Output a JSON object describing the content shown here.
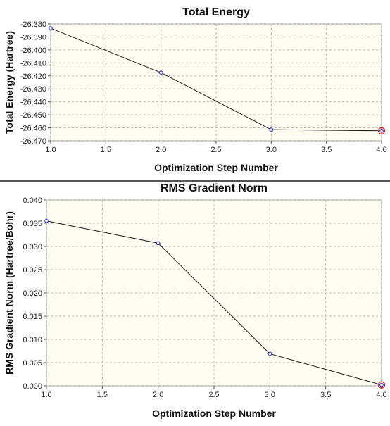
{
  "colors": {
    "plot_background": "#fdfdf2",
    "grid": "#b5b5b5",
    "line": "#1a1a1a",
    "point": "#3a3ae0",
    "last_point_marker": "#e02020"
  },
  "chart_data": [
    {
      "type": "line",
      "title": "Total Energy",
      "xlabel": "Optimization Step Number",
      "ylabel": "Total Energy (Hartree)",
      "x": [
        1.0,
        2.0,
        3.0,
        4.0
      ],
      "series": [
        {
          "values": [
            -26.3833,
            -26.4175,
            -26.4614,
            -26.4623
          ]
        }
      ],
      "xlim": [
        1.0,
        4.0
      ],
      "ylim": [
        -26.47,
        -26.38
      ],
      "xticks": [
        1.0,
        1.5,
        2.0,
        2.5,
        3.0,
        3.5,
        4.0
      ],
      "xtick_labels": [
        "1.0",
        "1.5",
        "2.0",
        "2.5",
        "3.0",
        "3.5",
        "4.0"
      ],
      "yticks": [
        -26.38,
        -26.39,
        -26.4,
        -26.41,
        -26.42,
        -26.43,
        -26.44,
        -26.45,
        -26.46,
        -26.47
      ],
      "ytick_labels": [
        "-26.380",
        "-26.390",
        "-26.400",
        "-26.410",
        "-26.420",
        "-26.430",
        "-26.440",
        "-26.450",
        "-26.460",
        "-26.470"
      ],
      "grid": true,
      "highlight_last_point": true
    },
    {
      "type": "line",
      "title": "RMS Gradient Norm",
      "xlabel": "Optimization Step Number",
      "ylabel": "RMS Gradient Norm (Hartree/Bohr)",
      "x": [
        1.0,
        2.0,
        3.0,
        4.0
      ],
      "series": [
        {
          "values": [
            0.0355,
            0.0307,
            0.0069,
            0.0002
          ]
        }
      ],
      "xlim": [
        1.0,
        4.0
      ],
      "ylim": [
        0.0,
        0.04
      ],
      "xticks": [
        1.0,
        1.5,
        2.0,
        2.5,
        3.0,
        3.5,
        4.0
      ],
      "xtick_labels": [
        "1.0",
        "1.5",
        "2.0",
        "2.5",
        "3.0",
        "3.5",
        "4.0"
      ],
      "yticks": [
        0.0,
        0.005,
        0.01,
        0.015,
        0.02,
        0.025,
        0.03,
        0.035,
        0.04
      ],
      "ytick_labels": [
        "0.000",
        "0.005",
        "0.010",
        "0.015",
        "0.020",
        "0.025",
        "0.030",
        "0.035",
        "0.040"
      ],
      "grid": true,
      "highlight_last_point": true
    }
  ]
}
